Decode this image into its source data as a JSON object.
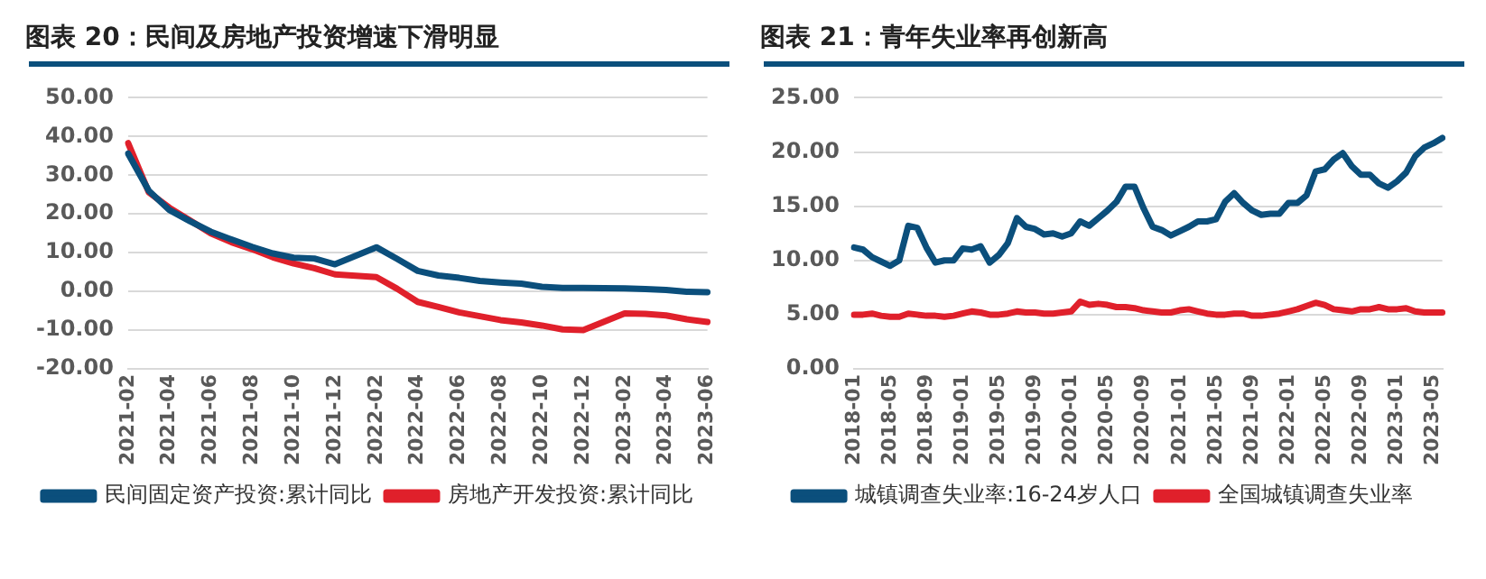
{
  "chart_data": [
    {
      "type": "line",
      "title": "图表 20：民间及房地产投资增速下滑明显",
      "categories": [
        "2021-02",
        null,
        "2021-04",
        null,
        "2021-06",
        null,
        "2021-08",
        null,
        "2021-10",
        null,
        "2021-12",
        null,
        "2022-02",
        null,
        "2022-04",
        null,
        "2022-06",
        null,
        "2022-08",
        null,
        "2022-10",
        null,
        "2022-12",
        null,
        "2023-02",
        null,
        "2023-04",
        null,
        "2023-06"
      ],
      "series": [
        {
          "name": "民间固定资产投资:累计同比",
          "color": "#0b4f7c",
          "values": [
            35.6,
            26.0,
            21.0,
            18.1,
            15.4,
            13.4,
            11.5,
            9.8,
            8.7,
            8.5,
            7.0,
            null,
            11.4,
            8.4,
            5.3,
            4.1,
            3.5,
            2.7,
            2.3,
            2.0,
            1.2,
            0.9,
            0.9,
            null,
            0.8,
            0.6,
            0.4,
            -0.1,
            -0.2
          ]
        },
        {
          "name": "房地产开发投资:累计同比",
          "color": "#e0202b",
          "values": [
            38.3,
            25.6,
            21.6,
            18.3,
            15.0,
            12.7,
            10.9,
            8.8,
            7.2,
            6.0,
            4.4,
            null,
            3.7,
            0.7,
            -2.7,
            -4.0,
            -5.4,
            -6.4,
            -7.4,
            -8.0,
            -8.8,
            -9.8,
            -10.0,
            null,
            -5.7,
            -5.8,
            -6.2,
            -7.2,
            -7.9
          ]
        }
      ],
      "ylim": [
        -20,
        50
      ],
      "yticks": [
        {
          "value": -20,
          "label": "-20.00"
        },
        {
          "value": -10,
          "label": "-10.00"
        },
        {
          "value": 0,
          "label": "0.00"
        },
        {
          "value": 10,
          "label": "10.00"
        },
        {
          "value": 20,
          "label": "20.00"
        },
        {
          "value": 30,
          "label": "30.00"
        },
        {
          "value": 40,
          "label": "40.00"
        },
        {
          "value": 50,
          "label": "50.00"
        }
      ],
      "grid": "y",
      "legend": "bottom",
      "marker": "none",
      "line_style": "solid"
    },
    {
      "type": "line",
      "title": "图表 21：青年失业率再创新高",
      "categories": [
        "2018-01",
        null,
        null,
        null,
        "2018-05",
        null,
        null,
        null,
        "2018-09",
        null,
        null,
        null,
        "2019-01",
        null,
        null,
        null,
        "2019-05",
        null,
        null,
        null,
        "2019-09",
        null,
        null,
        null,
        "2020-01",
        null,
        null,
        null,
        "2020-05",
        null,
        null,
        null,
        "2020-09",
        null,
        null,
        null,
        "2021-01",
        null,
        null,
        null,
        "2021-05",
        null,
        null,
        null,
        "2021-09",
        null,
        null,
        null,
        "2022-01",
        null,
        null,
        null,
        "2022-05",
        null,
        null,
        null,
        "2022-09",
        null,
        null,
        null,
        "2023-01",
        null,
        null,
        null,
        "2023-05",
        null
      ],
      "series": [
        {
          "name": "城镇调查失业率:16-24岁人口",
          "color": "#0b4f7c",
          "values": [
            11.2,
            11.0,
            10.3,
            9.9,
            9.5,
            10.0,
            13.2,
            13.0,
            11.2,
            9.8,
            10.0,
            10.0,
            11.1,
            11.0,
            11.3,
            9.8,
            10.5,
            11.6,
            13.9,
            13.1,
            12.9,
            12.4,
            12.5,
            12.2,
            12.5,
            13.6,
            13.2,
            13.9,
            14.6,
            15.4,
            16.8,
            16.8,
            14.8,
            13.1,
            12.8,
            12.3,
            12.7,
            13.1,
            13.6,
            13.6,
            13.8,
            15.4,
            16.2,
            15.3,
            14.6,
            14.2,
            14.3,
            14.3,
            15.3,
            15.3,
            16.0,
            18.2,
            18.4,
            19.3,
            19.9,
            18.7,
            17.9,
            17.9,
            17.1,
            16.7,
            17.3,
            18.1,
            19.6,
            20.4,
            20.8,
            21.3
          ]
        },
        {
          "name": "全国城镇调查失业率",
          "color": "#e0202b",
          "values": [
            5.0,
            5.0,
            5.1,
            4.9,
            4.8,
            4.8,
            5.1,
            5.0,
            4.9,
            4.9,
            4.8,
            4.9,
            5.1,
            5.3,
            5.2,
            5.0,
            5.0,
            5.1,
            5.3,
            5.2,
            5.2,
            5.1,
            5.1,
            5.2,
            5.3,
            6.2,
            5.9,
            6.0,
            5.9,
            5.7,
            5.7,
            5.6,
            5.4,
            5.3,
            5.2,
            5.2,
            5.4,
            5.5,
            5.3,
            5.1,
            5.0,
            5.0,
            5.1,
            5.1,
            4.9,
            4.9,
            5.0,
            5.1,
            5.3,
            5.5,
            5.8,
            6.1,
            5.9,
            5.5,
            5.4,
            5.3,
            5.5,
            5.5,
            5.7,
            5.5,
            5.5,
            5.6,
            5.3,
            5.2,
            5.2,
            5.2
          ]
        }
      ],
      "ylim": [
        0,
        25
      ],
      "yticks": [
        {
          "value": 0,
          "label": "0.00"
        },
        {
          "value": 5,
          "label": "5.00"
        },
        {
          "value": 10,
          "label": "10.00"
        },
        {
          "value": 15,
          "label": "15.00"
        },
        {
          "value": 20,
          "label": "20.00"
        },
        {
          "value": 25,
          "label": "25.00"
        }
      ],
      "grid": "y",
      "legend": "bottom",
      "marker": "none",
      "line_style": "solid"
    }
  ]
}
